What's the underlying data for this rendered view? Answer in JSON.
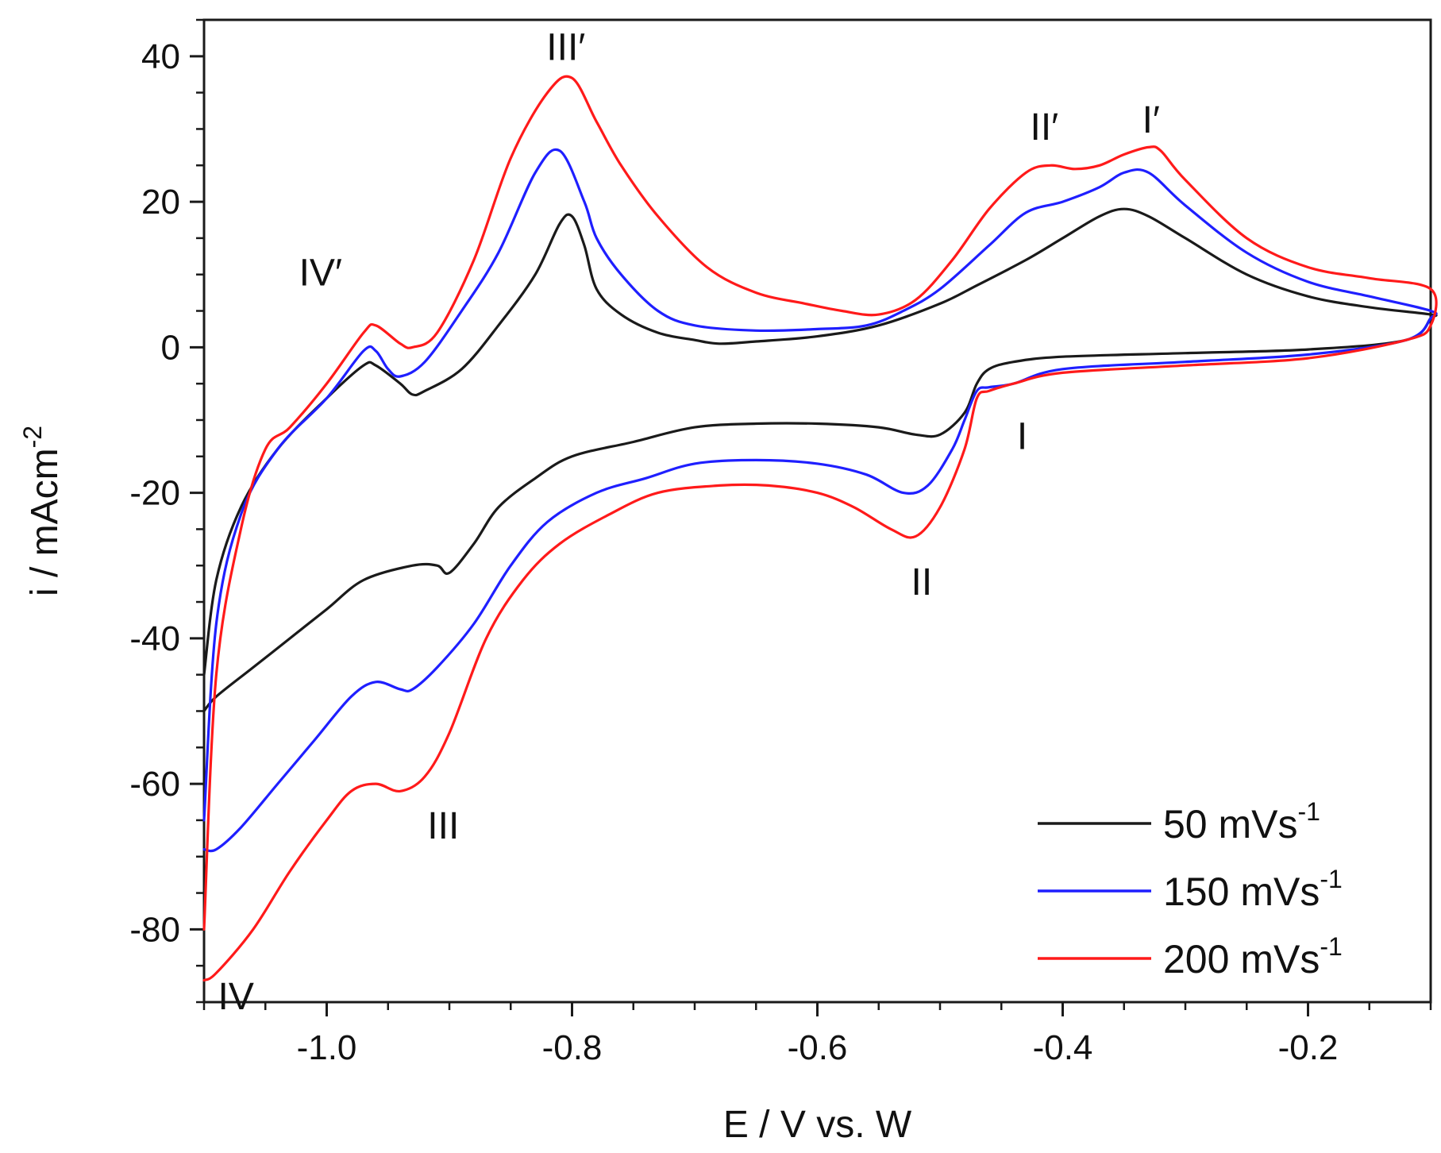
{
  "chart_data": {
    "type": "line",
    "title": "",
    "xlabel": "E / V vs. W",
    "ylabel_main": "i / mAcm",
    "ylabel_sup": "-2",
    "xlim": [
      -1.1,
      -0.1
    ],
    "ylim": [
      -90,
      45
    ],
    "x_ticks": [
      -1.0,
      -0.8,
      -0.6,
      -0.4,
      -0.2
    ],
    "x_tick_labels": [
      "-1.0",
      "-0.8",
      "-0.6",
      "-0.4",
      "-0.2"
    ],
    "y_ticks": [
      40,
      20,
      0,
      -20,
      -40,
      -60,
      -80
    ],
    "y_tick_labels": [
      "40",
      "20",
      "0",
      "-20",
      "-40",
      "-60",
      "-80"
    ],
    "grid": false,
    "legend_position": "bottom-right",
    "series": [
      {
        "name": "50 mVs",
        "name_sup": "-1",
        "color": "#1a1a1a",
        "points": [
          [
            -1.1,
            -50
          ],
          [
            -1.09,
            -48
          ],
          [
            -1.06,
            -44
          ],
          [
            -1.03,
            -40
          ],
          [
            -1.0,
            -36
          ],
          [
            -0.97,
            -32
          ],
          [
            -0.93,
            -30
          ],
          [
            -0.91,
            -30
          ],
          [
            -0.9,
            -31
          ],
          [
            -0.88,
            -27
          ],
          [
            -0.86,
            -22
          ],
          [
            -0.83,
            -18
          ],
          [
            -0.8,
            -15
          ],
          [
            -0.75,
            -13
          ],
          [
            -0.7,
            -11
          ],
          [
            -0.65,
            -10.5
          ],
          [
            -0.6,
            -10.5
          ],
          [
            -0.55,
            -11
          ],
          [
            -0.52,
            -12
          ],
          [
            -0.5,
            -12
          ],
          [
            -0.48,
            -9
          ],
          [
            -0.47,
            -5
          ],
          [
            -0.46,
            -3
          ],
          [
            -0.44,
            -2
          ],
          [
            -0.4,
            -1.3
          ],
          [
            -0.3,
            -0.8
          ],
          [
            -0.2,
            -0.3
          ],
          [
            -0.12,
            1
          ],
          [
            -0.1,
            4
          ],
          [
            -0.1,
            4.5
          ],
          [
            -0.15,
            5.5
          ],
          [
            -0.2,
            7
          ],
          [
            -0.25,
            10
          ],
          [
            -0.3,
            15
          ],
          [
            -0.33,
            18
          ],
          [
            -0.35,
            19
          ],
          [
            -0.37,
            18
          ],
          [
            -0.4,
            15
          ],
          [
            -0.43,
            12
          ],
          [
            -0.47,
            8.5
          ],
          [
            -0.5,
            6
          ],
          [
            -0.55,
            3
          ],
          [
            -0.6,
            1.5
          ],
          [
            -0.65,
            0.8
          ],
          [
            -0.68,
            0.5
          ],
          [
            -0.7,
            1
          ],
          [
            -0.73,
            2
          ],
          [
            -0.76,
            4.5
          ],
          [
            -0.78,
            8
          ],
          [
            -0.79,
            14
          ],
          [
            -0.8,
            18
          ],
          [
            -0.81,
            17
          ],
          [
            -0.83,
            10
          ],
          [
            -0.86,
            3
          ],
          [
            -0.89,
            -3
          ],
          [
            -0.92,
            -6
          ],
          [
            -0.93,
            -6.5
          ],
          [
            -0.94,
            -5
          ],
          [
            -0.96,
            -2.5
          ],
          [
            -0.97,
            -2.5
          ],
          [
            -1.0,
            -7
          ],
          [
            -1.04,
            -14
          ],
          [
            -1.07,
            -22
          ],
          [
            -1.09,
            -32
          ],
          [
            -1.1,
            -45
          ]
        ]
      },
      {
        "name": "150 mVs",
        "name_sup": "-1",
        "color": "#1f1fff",
        "points": [
          [
            -1.1,
            -69
          ],
          [
            -1.09,
            -69
          ],
          [
            -1.07,
            -66
          ],
          [
            -1.04,
            -60
          ],
          [
            -1.01,
            -54
          ],
          [
            -0.98,
            -48
          ],
          [
            -0.96,
            -46
          ],
          [
            -0.94,
            -47
          ],
          [
            -0.93,
            -47
          ],
          [
            -0.91,
            -44
          ],
          [
            -0.88,
            -38
          ],
          [
            -0.85,
            -30
          ],
          [
            -0.82,
            -24
          ],
          [
            -0.78,
            -20
          ],
          [
            -0.74,
            -18
          ],
          [
            -0.7,
            -16
          ],
          [
            -0.65,
            -15.5
          ],
          [
            -0.6,
            -16
          ],
          [
            -0.56,
            -17.5
          ],
          [
            -0.53,
            -20
          ],
          [
            -0.51,
            -19
          ],
          [
            -0.49,
            -14
          ],
          [
            -0.48,
            -10
          ],
          [
            -0.47,
            -6
          ],
          [
            -0.46,
            -5.5
          ],
          [
            -0.44,
            -5
          ],
          [
            -0.4,
            -3
          ],
          [
            -0.3,
            -2
          ],
          [
            -0.2,
            -1
          ],
          [
            -0.12,
            1
          ],
          [
            -0.1,
            4
          ],
          [
            -0.1,
            5
          ],
          [
            -0.15,
            7
          ],
          [
            -0.2,
            9
          ],
          [
            -0.25,
            13
          ],
          [
            -0.3,
            19.5
          ],
          [
            -0.33,
            24
          ],
          [
            -0.35,
            24
          ],
          [
            -0.37,
            22
          ],
          [
            -0.4,
            20
          ],
          [
            -0.43,
            18.5
          ],
          [
            -0.46,
            14
          ],
          [
            -0.5,
            8
          ],
          [
            -0.53,
            5
          ],
          [
            -0.56,
            3
          ],
          [
            -0.6,
            2.5
          ],
          [
            -0.65,
            2.3
          ],
          [
            -0.7,
            3
          ],
          [
            -0.73,
            5
          ],
          [
            -0.76,
            10
          ],
          [
            -0.78,
            15
          ],
          [
            -0.79,
            20
          ],
          [
            -0.81,
            27
          ],
          [
            -0.83,
            24
          ],
          [
            -0.86,
            13
          ],
          [
            -0.89,
            5
          ],
          [
            -0.92,
            -2
          ],
          [
            -0.94,
            -4
          ],
          [
            -0.95,
            -3
          ],
          [
            -0.96,
            -0.5
          ],
          [
            -0.97,
            -0.5
          ],
          [
            -1.0,
            -7
          ],
          [
            -1.04,
            -14
          ],
          [
            -1.07,
            -23
          ],
          [
            -1.09,
            -38
          ],
          [
            -1.1,
            -65
          ]
        ]
      },
      {
        "name": "200 mVs",
        "name_sup": "-1",
        "color": "#ff1a1a",
        "points": [
          [
            -1.1,
            -87
          ],
          [
            -1.09,
            -86
          ],
          [
            -1.06,
            -80
          ],
          [
            -1.03,
            -72
          ],
          [
            -1.0,
            -65
          ],
          [
            -0.98,
            -61
          ],
          [
            -0.96,
            -60
          ],
          [
            -0.94,
            -61
          ],
          [
            -0.92,
            -59
          ],
          [
            -0.9,
            -53
          ],
          [
            -0.87,
            -40
          ],
          [
            -0.84,
            -32
          ],
          [
            -0.81,
            -27
          ],
          [
            -0.77,
            -23
          ],
          [
            -0.73,
            -20
          ],
          [
            -0.68,
            -19
          ],
          [
            -0.64,
            -19
          ],
          [
            -0.6,
            -20
          ],
          [
            -0.57,
            -22
          ],
          [
            -0.54,
            -25
          ],
          [
            -0.52,
            -26
          ],
          [
            -0.5,
            -22
          ],
          [
            -0.48,
            -14
          ],
          [
            -0.47,
            -7
          ],
          [
            -0.46,
            -6
          ],
          [
            -0.44,
            -5
          ],
          [
            -0.4,
            -3.5
          ],
          [
            -0.3,
            -2.5
          ],
          [
            -0.2,
            -1.5
          ],
          [
            -0.12,
            1
          ],
          [
            -0.1,
            3
          ],
          [
            -0.1,
            8
          ],
          [
            -0.15,
            9.5
          ],
          [
            -0.2,
            11
          ],
          [
            -0.25,
            15
          ],
          [
            -0.3,
            23
          ],
          [
            -0.32,
            27
          ],
          [
            -0.33,
            27.5
          ],
          [
            -0.35,
            26.5
          ],
          [
            -0.37,
            25
          ],
          [
            -0.39,
            24.5
          ],
          [
            -0.41,
            25
          ],
          [
            -0.43,
            24
          ],
          [
            -0.46,
            19
          ],
          [
            -0.49,
            12
          ],
          [
            -0.52,
            6.5
          ],
          [
            -0.55,
            4.5
          ],
          [
            -0.58,
            5
          ],
          [
            -0.61,
            6
          ],
          [
            -0.65,
            7.5
          ],
          [
            -0.69,
            11
          ],
          [
            -0.73,
            18
          ],
          [
            -0.76,
            25
          ],
          [
            -0.78,
            31
          ],
          [
            -0.8,
            37
          ],
          [
            -0.82,
            35
          ],
          [
            -0.85,
            26
          ],
          [
            -0.88,
            12
          ],
          [
            -0.91,
            2
          ],
          [
            -0.93,
            0
          ],
          [
            -0.94,
            0.5
          ],
          [
            -0.96,
            3
          ],
          [
            -0.97,
            2
          ],
          [
            -1.0,
            -5
          ],
          [
            -1.03,
            -11
          ],
          [
            -1.05,
            -14
          ],
          [
            -1.07,
            -25
          ],
          [
            -1.09,
            -45
          ],
          [
            -1.1,
            -80
          ]
        ]
      }
    ],
    "annotations": [
      {
        "label": "IV′",
        "x": -1.005,
        "y": 8.5
      },
      {
        "label": "III′",
        "x": -0.805,
        "y": 39.5
      },
      {
        "label": "II′",
        "x": -0.415,
        "y": 28.5
      },
      {
        "label": "I′",
        "x": -0.328,
        "y": 29.5
      },
      {
        "label": "I",
        "x": -0.433,
        "y": -14
      },
      {
        "label": "II",
        "x": -0.515,
        "y": -34
      },
      {
        "label": "III",
        "x": -0.905,
        "y": -67.5
      },
      {
        "label": "IV",
        "x": -1.074,
        "y": -91
      }
    ]
  }
}
